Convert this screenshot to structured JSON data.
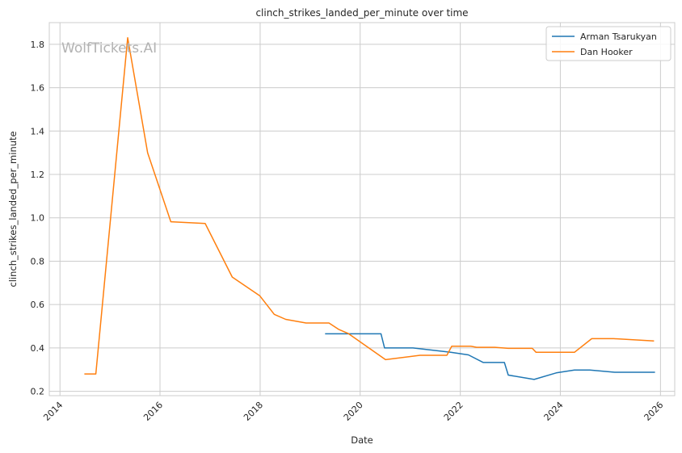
{
  "chart_data": {
    "type": "line",
    "title": "clinch_strikes_landed_per_minute over time",
    "xlabel": "Date",
    "ylabel": "clinch_strikes_landed_per_minute",
    "watermark": "WolfTickets.AI",
    "xlim": [
      "2013-10-15",
      "2026-04-15"
    ],
    "ylim": [
      0.18,
      1.9
    ],
    "x_ticks": [
      "2014",
      "2016",
      "2018",
      "2020",
      "2022",
      "2024",
      "2026"
    ],
    "y_ticks": [
      "0.2",
      "0.4",
      "0.6",
      "0.8",
      "1.0",
      "1.2",
      "1.4",
      "1.6",
      "1.8"
    ],
    "grid": true,
    "legend_position": "top-right",
    "series": [
      {
        "name": "Arman Tsarukyan",
        "color": "#1f77b4",
        "points": [
          [
            "2019-04-20",
            0.465
          ],
          [
            "2020-06-01",
            0.465
          ],
          [
            "2020-06-27",
            0.4
          ],
          [
            "2021-01-20",
            0.4
          ],
          [
            "2021-10-23",
            0.38
          ],
          [
            "2022-03-01",
            0.368
          ],
          [
            "2022-06-18",
            0.333
          ],
          [
            "2022-11-19",
            0.333
          ],
          [
            "2022-12-17",
            0.275
          ],
          [
            "2023-06-24",
            0.255
          ],
          [
            "2023-12-02",
            0.285
          ],
          [
            "2024-04-13",
            0.298
          ],
          [
            "2024-08-03",
            0.298
          ],
          [
            "2025-02-01",
            0.288
          ],
          [
            "2025-11-22",
            0.288
          ]
        ]
      },
      {
        "name": "Dan Hooker",
        "color": "#ff7f0e",
        "points": [
          [
            "2014-06-28",
            0.28
          ],
          [
            "2014-09-20",
            0.28
          ],
          [
            "2015-05-10",
            1.83
          ],
          [
            "2015-10-03",
            1.3
          ],
          [
            "2016-03-20",
            0.982
          ],
          [
            "2016-11-26",
            0.974
          ],
          [
            "2017-06-11",
            0.727
          ],
          [
            "2017-12-30",
            0.64
          ],
          [
            "2018-04-14",
            0.555
          ],
          [
            "2018-07-07",
            0.532
          ],
          [
            "2018-12-02",
            0.515
          ],
          [
            "2019-05-18",
            0.515
          ],
          [
            "2019-07-27",
            0.486
          ],
          [
            "2019-10-05",
            0.467
          ],
          [
            "2020-07-04",
            0.346
          ],
          [
            "2021-03-13",
            0.366
          ],
          [
            "2021-09-25",
            0.366
          ],
          [
            "2021-10-30",
            0.408
          ],
          [
            "2022-03-19",
            0.408
          ],
          [
            "2022-04-30",
            0.403
          ],
          [
            "2022-09-10",
            0.403
          ],
          [
            "2022-12-17",
            0.398
          ],
          [
            "2023-06-10",
            0.398
          ],
          [
            "2023-07-08",
            0.38
          ],
          [
            "2024-04-13",
            0.38
          ],
          [
            "2024-08-17",
            0.443
          ],
          [
            "2025-01-25",
            0.443
          ],
          [
            "2025-11-15",
            0.432
          ]
        ]
      }
    ]
  }
}
